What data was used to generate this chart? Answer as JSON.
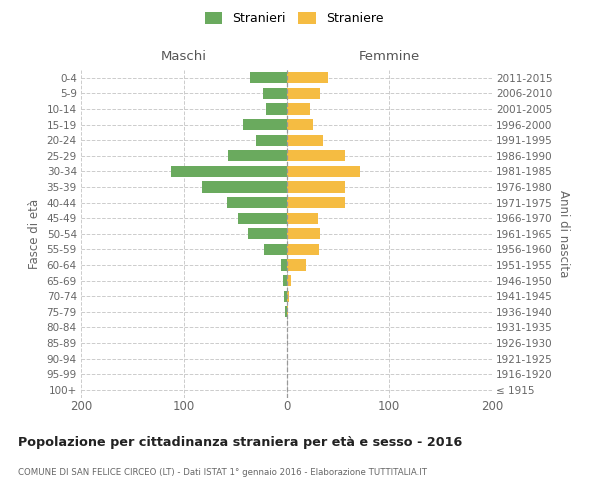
{
  "age_groups": [
    "100+",
    "95-99",
    "90-94",
    "85-89",
    "80-84",
    "75-79",
    "70-74",
    "65-69",
    "60-64",
    "55-59",
    "50-54",
    "45-49",
    "40-44",
    "35-39",
    "30-34",
    "25-29",
    "20-24",
    "15-19",
    "10-14",
    "5-9",
    "0-4"
  ],
  "birth_years": [
    "≤ 1915",
    "1916-1920",
    "1921-1925",
    "1926-1930",
    "1931-1935",
    "1936-1940",
    "1941-1945",
    "1946-1950",
    "1951-1955",
    "1956-1960",
    "1961-1965",
    "1966-1970",
    "1971-1975",
    "1976-1980",
    "1981-1985",
    "1986-1990",
    "1991-1995",
    "1996-2000",
    "2001-2005",
    "2006-2010",
    "2011-2015"
  ],
  "maschi": [
    0,
    0,
    0,
    0,
    0,
    1,
    2,
    3,
    5,
    22,
    37,
    47,
    58,
    82,
    112,
    57,
    30,
    42,
    20,
    23,
    36
  ],
  "femmine": [
    0,
    0,
    0,
    0,
    0,
    1,
    2,
    4,
    19,
    32,
    33,
    31,
    57,
    57,
    72,
    57,
    36,
    26,
    23,
    33,
    40
  ],
  "male_color": "#6aaa5e",
  "female_color": "#f5bc42",
  "background_color": "#ffffff",
  "grid_color": "#cccccc",
  "title": "Popolazione per cittadinanza straniera per età e sesso - 2016",
  "subtitle": "COMUNE DI SAN FELICE CIRCEO (LT) - Dati ISTAT 1° gennaio 2016 - Elaborazione TUTTITALIA.IT",
  "ylabel_left": "Fasce di età",
  "ylabel_right": "Anni di nascita",
  "maschi_label": "Maschi",
  "femmine_label": "Femmine",
  "legend_stranieri": "Stranieri",
  "legend_straniere": "Straniere",
  "xlim": 200,
  "bar_height": 0.72
}
